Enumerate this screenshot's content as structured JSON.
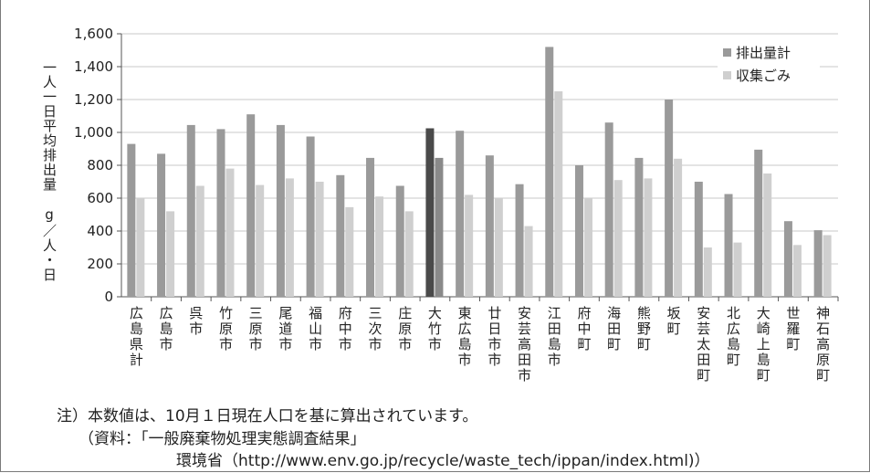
{
  "chart_data": {
    "type": "bar",
    "ylabel": "一人一日平均排出量　g／人・日",
    "ylim": [
      0,
      1600
    ],
    "yticks": [
      "0",
      "200",
      "400",
      "600",
      "800",
      "1,000",
      "1,200",
      "1,400",
      "1,600"
    ],
    "legend_position": "top-right",
    "categories": [
      "広島県計",
      "広島市",
      "呉市",
      "竹原市",
      "三原市",
      "尾道市",
      "福山市",
      "府中市",
      "三次市",
      "庄原市",
      "大竹市",
      "東広島市",
      "廿日市市",
      "安芸高田市",
      "江田島市",
      "府中町",
      "海田町",
      "熊野町",
      "坂町",
      "安芸太田町",
      "北広島町",
      "大崎上島町",
      "世羅町",
      "神石高原町"
    ],
    "highlight_category": "大竹市",
    "series": [
      {
        "name": "排出量計",
        "color": "#9a9a9a",
        "highlight_color": "#4a4a4a",
        "values": [
          930,
          870,
          1045,
          1020,
          1110,
          1045,
          975,
          740,
          845,
          675,
          1025,
          1010,
          860,
          685,
          1520,
          800,
          1060,
          845,
          1200,
          700,
          625,
          895,
          460,
          405
        ]
      },
      {
        "name": "収集ごみ",
        "color": "#cfcfcf",
        "highlight_color": "#8a8a8a",
        "values": [
          600,
          520,
          675,
          780,
          680,
          720,
          700,
          545,
          610,
          520,
          845,
          620,
          600,
          430,
          1250,
          600,
          710,
          720,
          840,
          300,
          330,
          750,
          315,
          375
        ]
      }
    ]
  },
  "notes": {
    "line1": "注）本数値は、10月１日現在人口を基に算出されています。",
    "line2": "（資料：「一般廃棄物処理実態調査結果」",
    "line3": "環境省（http://www.env.go.jp/recycle/waste_tech/ippan/index.html)）"
  }
}
